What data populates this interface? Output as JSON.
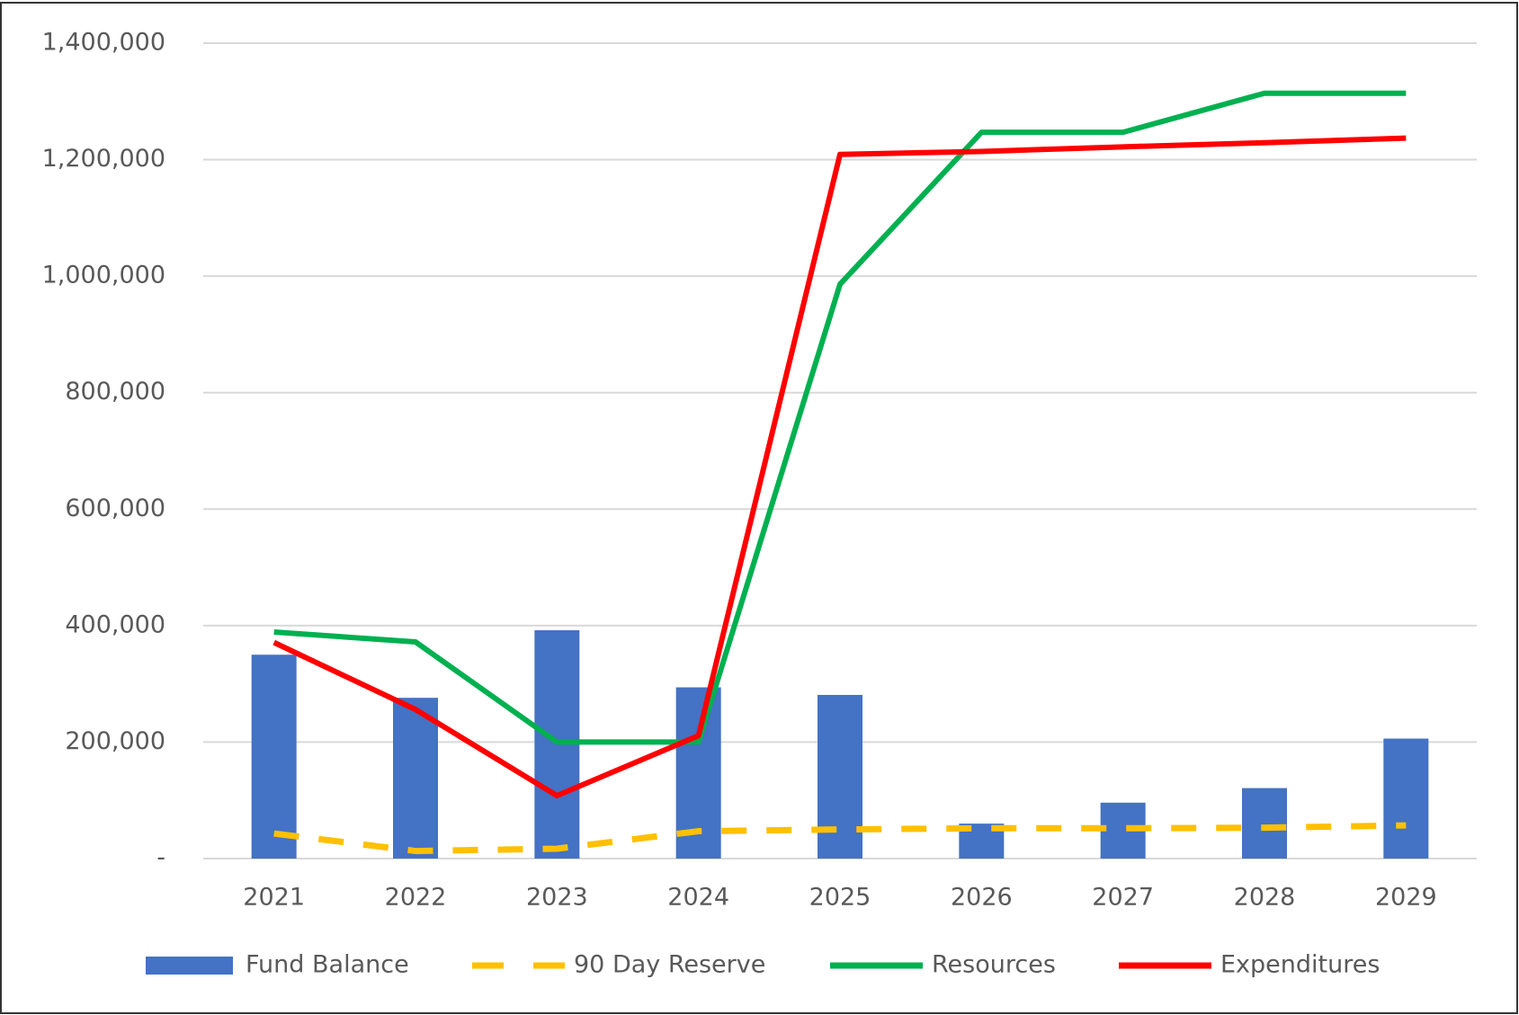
{
  "chart_data": {
    "type": "combo",
    "categories": [
      "2021",
      "2022",
      "2023",
      "2024",
      "2025",
      "2026",
      "2027",
      "2028",
      "2029"
    ],
    "series": [
      {
        "name": "Fund Balance",
        "kind": "bar",
        "color": "#4472c4",
        "values": [
          350000,
          276000,
          392000,
          294000,
          281000,
          60000,
          96000,
          121000,
          206000
        ]
      },
      {
        "name": "90 Day Reserve",
        "kind": "line",
        "dashed": true,
        "color": "#ffc000",
        "values": [
          43000,
          13000,
          17000,
          47000,
          50000,
          52000,
          52000,
          53000,
          57000
        ]
      },
      {
        "name": "Resources",
        "kind": "line",
        "color": "#00b050",
        "values": [
          389000,
          372000,
          200000,
          200000,
          986000,
          1247000,
          1247000,
          1314000,
          1314000
        ]
      },
      {
        "name": "Expenditures",
        "kind": "line",
        "color": "#ff0000",
        "values": [
          371000,
          256000,
          108000,
          211000,
          1209000,
          1214000,
          1222000,
          1229000,
          1237000
        ]
      }
    ],
    "ylim": [
      0,
      1400000
    ],
    "yticks": [
      {
        "value": 0,
        "label": "-"
      },
      {
        "value": 200000,
        "label": "200,000"
      },
      {
        "value": 400000,
        "label": "400,000"
      },
      {
        "value": 600000,
        "label": "600,000"
      },
      {
        "value": 800000,
        "label": "800,000"
      },
      {
        "value": 1000000,
        "label": "1,000,000"
      },
      {
        "value": 1200000,
        "label": "1,200,000"
      },
      {
        "value": 1400000,
        "label": "1,400,000"
      }
    ],
    "grid": true,
    "legend": "bottom"
  }
}
